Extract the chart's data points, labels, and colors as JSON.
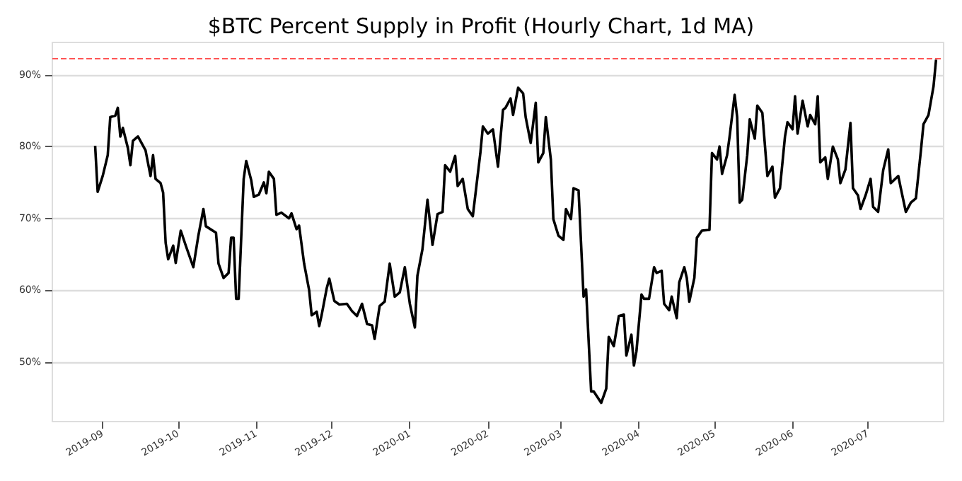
{
  "chart_data": {
    "type": "line",
    "title": "$BTC Percent Supply in Profit (Hourly Chart, 1d MA)",
    "x": [
      "2019-08-29",
      "2019-08-30",
      "2019-09-01",
      "2019-09-03",
      "2019-09-04",
      "2019-09-06",
      "2019-09-07",
      "2019-09-08",
      "2019-09-09",
      "2019-09-11",
      "2019-09-12",
      "2019-09-13",
      "2019-09-15",
      "2019-09-18",
      "2019-09-20",
      "2019-09-21",
      "2019-09-22",
      "2019-09-24",
      "2019-09-25",
      "2019-09-26",
      "2019-09-27",
      "2019-09-29",
      "2019-09-30",
      "2019-10-02",
      "2019-10-04",
      "2019-10-07",
      "2019-10-09",
      "2019-10-11",
      "2019-10-12",
      "2019-10-16",
      "2019-10-17",
      "2019-10-19",
      "2019-10-21",
      "2019-10-22",
      "2019-10-23",
      "2019-10-24",
      "2019-10-25",
      "2019-10-27",
      "2019-10-28",
      "2019-10-30",
      "2019-10-31",
      "2019-11-02",
      "2019-11-04",
      "2019-11-05",
      "2019-11-06",
      "2019-11-08",
      "2019-11-09",
      "2019-11-11",
      "2019-11-14",
      "2019-11-15",
      "2019-11-17",
      "2019-11-18",
      "2019-11-20",
      "2019-11-22",
      "2019-11-23",
      "2019-11-25",
      "2019-11-26",
      "2019-11-27",
      "2019-11-29",
      "2019-11-30",
      "2019-12-02",
      "2019-12-04",
      "2019-12-07",
      "2019-12-09",
      "2019-12-11",
      "2019-12-13",
      "2019-12-15",
      "2019-12-17",
      "2019-12-18",
      "2019-12-20",
      "2019-12-22",
      "2019-12-24",
      "2019-12-26",
      "2019-12-28",
      "2019-12-30",
      "2020-01-01",
      "2020-01-03",
      "2020-01-04",
      "2020-01-06",
      "2020-01-08",
      "2020-01-10",
      "2020-01-12",
      "2020-01-14",
      "2020-01-15",
      "2020-01-17",
      "2020-01-19",
      "2020-01-20",
      "2020-01-22",
      "2020-01-24",
      "2020-01-26",
      "2020-01-29",
      "2020-01-30",
      "2020-02-01",
      "2020-02-03",
      "2020-02-05",
      "2020-02-07",
      "2020-02-08",
      "2020-02-10",
      "2020-02-11",
      "2020-02-13",
      "2020-02-15",
      "2020-02-16",
      "2020-02-18",
      "2020-02-20",
      "2020-02-21",
      "2020-02-23",
      "2020-02-24",
      "2020-02-26",
      "2020-02-27",
      "2020-02-29",
      "2020-03-02",
      "2020-03-03",
      "2020-03-05",
      "2020-03-06",
      "2020-03-08",
      "2020-03-10",
      "2020-03-11",
      "2020-03-13",
      "2020-03-14",
      "2020-03-17",
      "2020-03-19",
      "2020-03-20",
      "2020-03-22",
      "2020-03-24",
      "2020-03-26",
      "2020-03-27",
      "2020-03-29",
      "2020-03-30",
      "2020-03-31",
      "2020-04-02",
      "2020-04-03",
      "2020-04-05",
      "2020-04-07",
      "2020-04-08",
      "2020-04-10",
      "2020-04-11",
      "2020-04-13",
      "2020-04-14",
      "2020-04-16",
      "2020-04-17",
      "2020-04-19",
      "2020-04-20",
      "2020-04-21",
      "2020-04-23",
      "2020-04-24",
      "2020-04-26",
      "2020-04-29",
      "2020-04-30",
      "2020-05-02",
      "2020-05-03",
      "2020-05-04",
      "2020-05-06",
      "2020-05-07",
      "2020-05-09",
      "2020-05-10",
      "2020-05-11",
      "2020-05-12",
      "2020-05-14",
      "2020-05-15",
      "2020-05-17",
      "2020-05-18",
      "2020-05-20",
      "2020-05-22",
      "2020-05-24",
      "2020-05-25",
      "2020-05-27",
      "2020-05-29",
      "2020-05-30",
      "2020-06-01",
      "2020-06-02",
      "2020-06-03",
      "2020-06-05",
      "2020-06-07",
      "2020-06-08",
      "2020-06-10",
      "2020-06-11",
      "2020-06-12",
      "2020-06-14",
      "2020-06-15",
      "2020-06-17",
      "2020-06-19",
      "2020-06-20",
      "2020-06-22",
      "2020-06-24",
      "2020-06-25",
      "2020-06-27",
      "2020-06-28",
      "2020-06-30",
      "2020-07-02",
      "2020-07-03",
      "2020-07-05",
      "2020-07-07",
      "2020-07-09",
      "2020-07-10",
      "2020-07-13",
      "2020-07-14",
      "2020-07-16",
      "2020-07-18",
      "2020-07-20",
      "2020-07-22",
      "2020-07-23",
      "2020-07-25",
      "2020-07-27",
      "2020-07-28"
    ],
    "series": [
      {
        "color": "#000000",
        "values": [
          80.1,
          73.7,
          75.9,
          78.8,
          84.1,
          84.3,
          85.4,
          81.4,
          82.6,
          79.8,
          77.4,
          80.8,
          81.4,
          79.5,
          75.9,
          78.8,
          75.5,
          74.9,
          73.6,
          66.6,
          64.3,
          66.2,
          63.8,
          68.3,
          66.2,
          63.2,
          67.6,
          71.3,
          68.9,
          68,
          63.7,
          61.7,
          62.4,
          67.3,
          67.3,
          58.8,
          58.8,
          75.5,
          78,
          75.3,
          73,
          73.3,
          75,
          73.5,
          76.5,
          75.5,
          70.5,
          70.8,
          70,
          70.7,
          68.5,
          69,
          63.7,
          60,
          56.5,
          57,
          55,
          56.6,
          60.3,
          61.6,
          58.5,
          58,
          58.1,
          57.1,
          56.4,
          58.1,
          55.3,
          55.1,
          53.2,
          57.8,
          58.4,
          63.7,
          59.1,
          59.7,
          63.2,
          58.1,
          54.8,
          62,
          65.7,
          72.6,
          66.3,
          70.6,
          70.9,
          77.4,
          76.5,
          78.7,
          74.5,
          75.5,
          71.3,
          70.3,
          79.1,
          82.8,
          81.8,
          82.4,
          77.2,
          85.1,
          85.4,
          86.7,
          84.4,
          88.2,
          87.4,
          84.1,
          80.5,
          86.1,
          77.8,
          79.1,
          84.1,
          78.2,
          69.9,
          67.6,
          67,
          71.3,
          69.9,
          74.2,
          73.9,
          59.1,
          60.1,
          45.9,
          45.9,
          44.3,
          46.3,
          53.5,
          52.2,
          56.4,
          56.6,
          50.9,
          53.8,
          49.5,
          51.5,
          59.4,
          58.8,
          58.8,
          63.2,
          62.4,
          62.7,
          58.1,
          57.2,
          59.1,
          56.1,
          61.1,
          63.2,
          61.7,
          58.4,
          61.7,
          67.3,
          68.3,
          68.4,
          79.1,
          78.2,
          80,
          76.2,
          78.8,
          81.4,
          87.2,
          84.1,
          72.2,
          72.6,
          78.8,
          83.8,
          81.1,
          85.7,
          84.7,
          75.9,
          77.2,
          72.9,
          74.2,
          81.4,
          83.4,
          82.4,
          87,
          81.8,
          86.4,
          82.8,
          84.4,
          83.1,
          87,
          77.8,
          78.5,
          75.5,
          80,
          78.2,
          74.9,
          76.8,
          83.3,
          74.2,
          73.2,
          71.3,
          73.2,
          75.5,
          71.6,
          70.9,
          76.7,
          79.6,
          74.9,
          75.9,
          74.2,
          70.9,
          72.2,
          72.8,
          79.5,
          83.1,
          84.4,
          88.4,
          92.1
        ]
      }
    ],
    "xlim": [
      "2019-08-12",
      "2020-07-31"
    ],
    "xticks": [
      "2019-09",
      "2019-10",
      "2019-11",
      "2019-12",
      "2020-01",
      "2020-02",
      "2020-03",
      "2020-04",
      "2020-05",
      "2020-06",
      "2020-07"
    ],
    "ylim": [
      41.7,
      94.5
    ],
    "yticks": [
      {
        "value": 50,
        "label": "50%"
      },
      {
        "value": 60,
        "label": "60%"
      },
      {
        "value": 70,
        "label": "70%"
      },
      {
        "value": 80,
        "label": "80%"
      },
      {
        "value": 90,
        "label": "90%"
      }
    ],
    "grid": "y",
    "ref_lines": [
      {
        "axis": "y",
        "value": 92.2,
        "color": "#ff5555",
        "line_style": "dashed"
      }
    ]
  }
}
